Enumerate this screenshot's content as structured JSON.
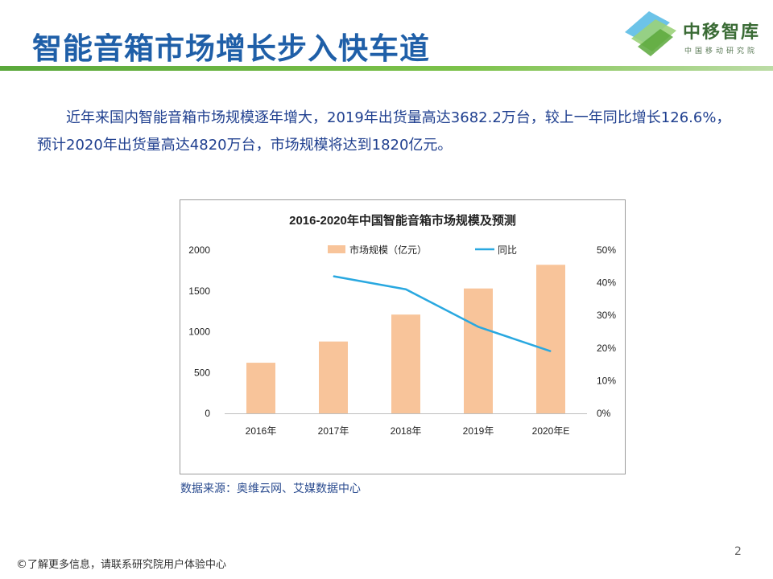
{
  "slide": {
    "title": "智能音箱市场增长步入快车道",
    "intro": "近年来国内智能音箱市场规模逐年增大，2019年出货量高达3682.2万台，较上一年同比增长126.6%，预计2020年出货量高达4820万台，市场规模将达到1820亿元。",
    "source": "数据来源：奥维云网、艾媒数据中心",
    "page_number": "2"
  },
  "logo": {
    "name": "中移智库",
    "subtitle": "中国移动研究院"
  },
  "footer": {
    "copyright_icon": "©",
    "text": "了解更多信息，请联系研究院用户体验中心"
  },
  "colors": {
    "title": "#1f5fa8",
    "bar": "#f8c49a",
    "line": "#29a8e0",
    "rule": "#5aa83b"
  },
  "chart_data": {
    "type": "bar",
    "title": "2016-2020年中国智能音箱市场规模及预测",
    "categories": [
      "2016年",
      "2017年",
      "2018年",
      "2019年",
      "2020年E"
    ],
    "series": [
      {
        "name": "市场规模（亿元）",
        "type": "bar",
        "axis": "left",
        "values": [
          620,
          880,
          1210,
          1530,
          1820
        ]
      },
      {
        "name": "同比",
        "type": "line",
        "axis": "right",
        "values": [
          null,
          42,
          38,
          26.5,
          19
        ]
      }
    ],
    "y_left": {
      "min": 0,
      "max": 2000,
      "ticks": [
        "0",
        "500",
        "1000",
        "1500",
        "2000"
      ]
    },
    "y_right": {
      "min": 0,
      "max": 50,
      "ticks": [
        "0%",
        "10%",
        "20%",
        "30%",
        "40%",
        "50%"
      ]
    },
    "legend_position": "top-center"
  }
}
